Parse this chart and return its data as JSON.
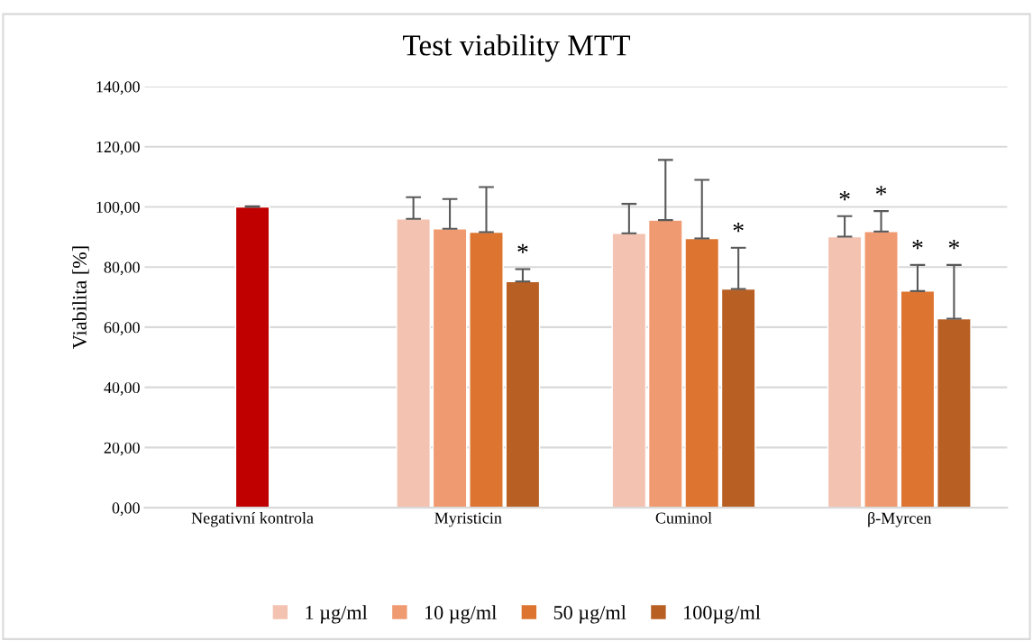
{
  "chart_data": {
    "type": "bar",
    "title": "Test viability MTT",
    "ylabel": "Viabilita [%]",
    "categories": [
      "Negativní kontrola",
      "Myristicin",
      "Cuminol",
      "β-Myrcen"
    ],
    "series": [
      {
        "color": "#c00000",
        "values": [
          100,
          null,
          null,
          null
        ],
        "errors": [
          0.2,
          null,
          null,
          null
        ]
      },
      {
        "name": "1 µg/ml",
        "color": "#f4c2b0",
        "values": [
          null,
          96.0,
          91.2,
          90.1
        ],
        "errors": [
          null,
          7.2,
          9.8,
          6.8
        ],
        "value_labels": [
          null,
          null,
          null,
          "*"
        ]
      },
      {
        "name": "10 µg/ml",
        "color": "#ef9a70",
        "values": [
          null,
          92.7,
          95.6,
          91.8
        ],
        "errors": [
          null,
          9.9,
          20.0,
          6.8
        ],
        "value_labels": [
          null,
          null,
          null,
          "*"
        ]
      },
      {
        "name": "50 µg/ml",
        "color": "#dd742f",
        "values": [
          null,
          91.6,
          89.5,
          72.0
        ],
        "errors": [
          null,
          15.0,
          19.5,
          8.7
        ],
        "value_labels": [
          null,
          null,
          null,
          "*"
        ]
      },
      {
        "name": "100µg/ml",
        "color": "#b85f24",
        "values": [
          null,
          75.2,
          72.7,
          62.8
        ],
        "errors": [
          null,
          4.1,
          13.7,
          17.9
        ],
        "value_labels": [
          null,
          "*",
          "*",
          "*"
        ]
      }
    ],
    "ylim": [
      0,
      140
    ],
    "yticks": [
      {
        "value": 0,
        "label": "0,00"
      },
      {
        "value": 20,
        "label": "20,00"
      },
      {
        "value": 40,
        "label": "40,00"
      },
      {
        "value": 60,
        "label": "60,00"
      },
      {
        "value": 80,
        "label": "80,00"
      },
      {
        "value": 100,
        "label": "100,00"
      },
      {
        "value": 120,
        "label": "120,00"
      },
      {
        "value": 140,
        "label": "140,00"
      }
    ],
    "grid": "y",
    "legend": "bottom"
  }
}
